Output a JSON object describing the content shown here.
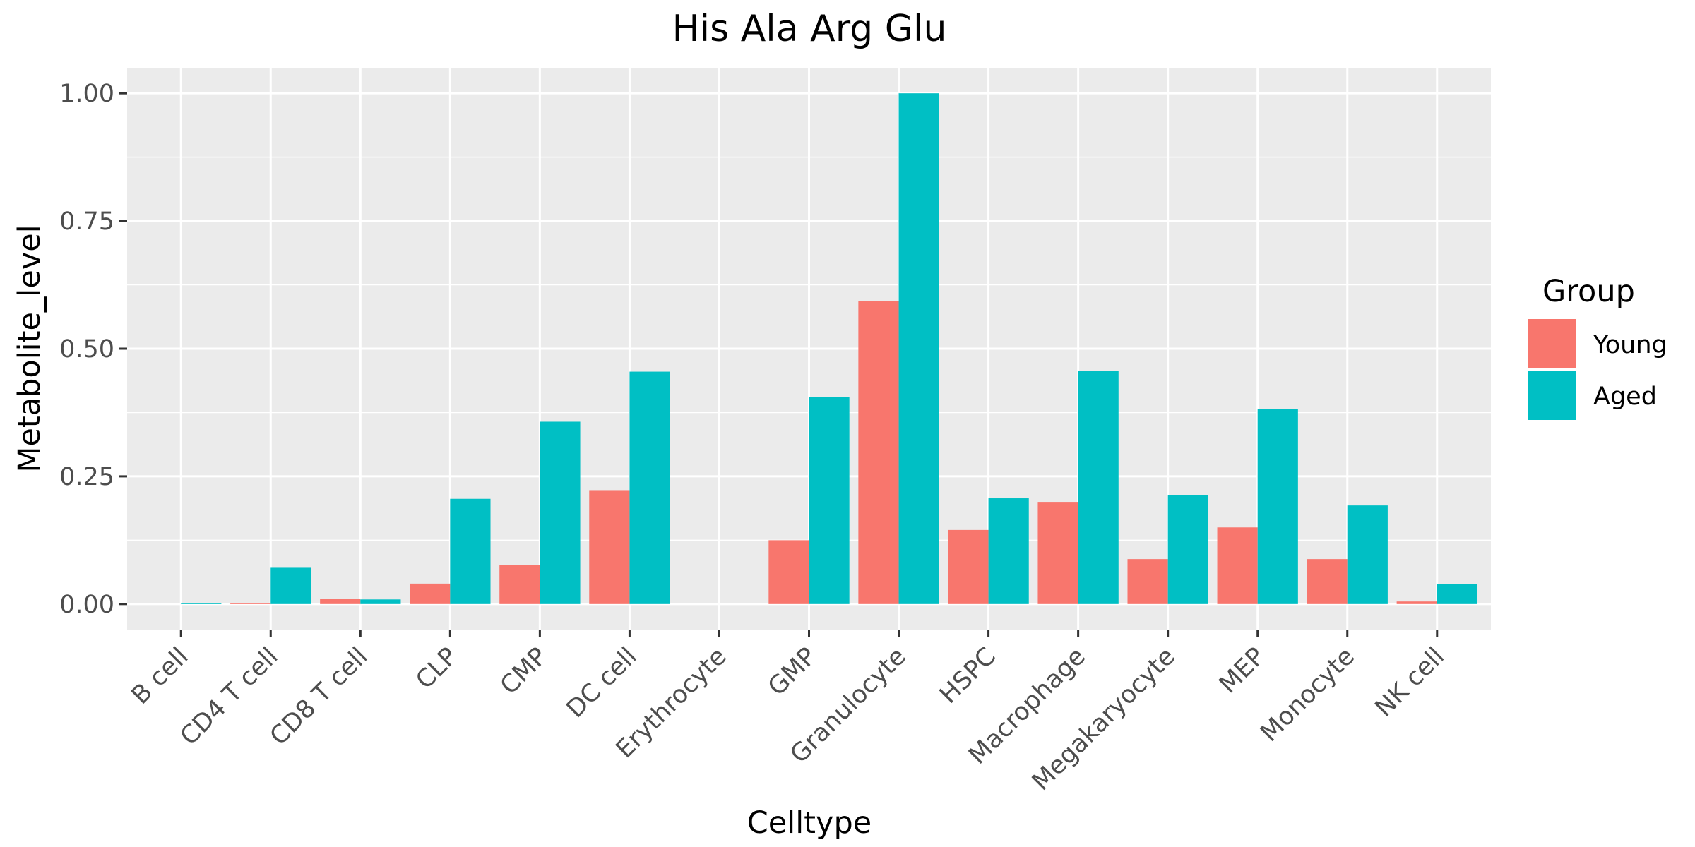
{
  "chart_data": {
    "type": "bar",
    "title": "His Ala Arg Glu",
    "xlabel": "Celltype",
    "ylabel": "Metabolite_level",
    "ylim": [
      -0.05,
      1.05
    ],
    "yticks": [
      0.0,
      0.25,
      0.5,
      0.75,
      1.0
    ],
    "ytick_labels": [
      "0.00",
      "0.25",
      "0.50",
      "0.75",
      "1.00"
    ],
    "categories": [
      "B cell",
      "CD4 T cell",
      "CD8 T cell",
      "CLP",
      "CMP",
      "DC cell",
      "Erythrocyte",
      "GMP",
      "Granulocyte",
      "HSPC",
      "Macrophage",
      "Megakaryocyte",
      "MEP",
      "Monocyte",
      "NK cell"
    ],
    "series": [
      {
        "name": "Young",
        "color": "#F8766D",
        "values": [
          0.0,
          0.002,
          0.01,
          0.04,
          0.076,
          0.223,
          0.0,
          0.125,
          0.593,
          0.145,
          0.2,
          0.088,
          0.15,
          0.088,
          0.005
        ]
      },
      {
        "name": "Aged",
        "color": "#00BFC4",
        "values": [
          0.002,
          0.071,
          0.009,
          0.206,
          0.357,
          0.455,
          0.0,
          0.405,
          1.0,
          0.207,
          0.457,
          0.213,
          0.382,
          0.193,
          0.039
        ]
      }
    ],
    "grid": true,
    "panel_background": "#EBEBEB",
    "legend": {
      "title": "Group",
      "placement": "right"
    }
  }
}
